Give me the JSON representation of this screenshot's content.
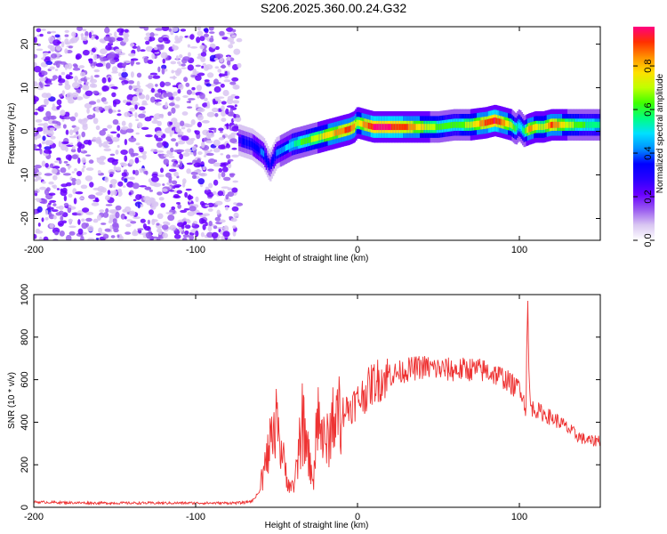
{
  "title": "S206.2025.360.00.24.G32",
  "chart_data": [
    {
      "type": "heatmap",
      "xlabel": "Height of straight line (km)",
      "ylabel": "Frequency (Hz)",
      "xlim": [
        -200,
        150
      ],
      "ylim": [
        -25,
        24
      ],
      "xticks": [
        -200,
        -100,
        0,
        100
      ],
      "yticks": [
        -20,
        -10,
        0,
        10,
        20
      ],
      "colorbar": {
        "label": "Normalized spectral amplitude",
        "range": [
          0,
          0.98
        ],
        "ticks": [
          0.0,
          0.2,
          0.4,
          0.6,
          0.8
        ],
        "colors": [
          "#ffffff",
          "#d9c6f2",
          "#9a5cf0",
          "#6a00ff",
          "#2a00ff",
          "#0000ff",
          "#0090ff",
          "#00e0ff",
          "#00ff80",
          "#40ff00",
          "#c0ff00",
          "#ffe000",
          "#ff9000",
          "#ff3000",
          "#ff0080"
        ]
      },
      "noise_region_x": [
        -200,
        -73
      ],
      "ridge": {
        "x": [
          -73,
          -65,
          -58,
          -54,
          -50,
          -45,
          -40,
          -35,
          -30,
          -25,
          -20,
          -15,
          -10,
          -5,
          -2,
          0,
          5,
          10,
          20,
          30,
          40,
          50,
          60,
          70,
          80,
          85,
          90,
          95,
          98,
          100,
          103,
          106,
          110,
          115,
          120,
          130,
          140,
          150
        ],
        "y": [
          -2,
          -3,
          -5,
          -8,
          -5,
          -4,
          -3,
          -2.5,
          -2,
          -1.5,
          -1,
          -0.5,
          0,
          0.5,
          1,
          2,
          1.5,
          1,
          1,
          1,
          1,
          1,
          1.5,
          1.5,
          2,
          2.5,
          2,
          1.5,
          0.5,
          1.5,
          0,
          0.5,
          1,
          1,
          1.5,
          1.5,
          1.5,
          1.5
        ],
        "amp": [
          0.3,
          0.35,
          0.4,
          0.3,
          0.4,
          0.45,
          0.5,
          0.6,
          0.65,
          0.7,
          0.75,
          0.8,
          0.85,
          0.9,
          0.85,
          0.7,
          0.85,
          0.95,
          0.95,
          0.9,
          0.75,
          0.65,
          0.6,
          0.7,
          0.9,
          0.95,
          0.85,
          0.7,
          0.6,
          0.5,
          0.55,
          0.85,
          0.75,
          0.7,
          0.9,
          0.7,
          0.6,
          0.55
        ]
      }
    },
    {
      "type": "line",
      "xlabel": "Height of straight line (km)",
      "ylabel": "SNR (10 * v/v)",
      "xlim": [
        -200,
        150
      ],
      "ylim": [
        0,
        1000
      ],
      "xticks": [
        -200,
        -100,
        0,
        100
      ],
      "yticks": [
        0,
        200,
        400,
        600,
        800,
        1000
      ],
      "color": "#ee3333",
      "series": [
        {
          "name": "SNR",
          "x": [
            -200,
            -180,
            -160,
            -140,
            -120,
            -100,
            -80,
            -70,
            -65,
            -60,
            -57,
            -54,
            -50,
            -47,
            -44,
            -40,
            -37,
            -34,
            -30,
            -27,
            -24,
            -20,
            -15,
            -10,
            -5,
            0,
            5,
            10,
            20,
            30,
            40,
            50,
            60,
            70,
            80,
            90,
            95,
            98,
            100,
            102,
            104,
            105,
            106,
            107,
            110,
            115,
            120,
            125,
            130,
            135,
            140,
            145,
            150
          ],
          "y": [
            25,
            22,
            20,
            20,
            20,
            20,
            20,
            22,
            30,
            80,
            200,
            290,
            330,
            270,
            150,
            70,
            200,
            350,
            230,
            130,
            420,
            280,
            390,
            450,
            470,
            500,
            540,
            590,
            620,
            645,
            660,
            650,
            645,
            650,
            640,
            610,
            580,
            560,
            580,
            530,
            450,
            980,
            600,
            470,
            460,
            440,
            420,
            400,
            370,
            340,
            320,
            310,
            320
          ]
        }
      ]
    }
  ]
}
